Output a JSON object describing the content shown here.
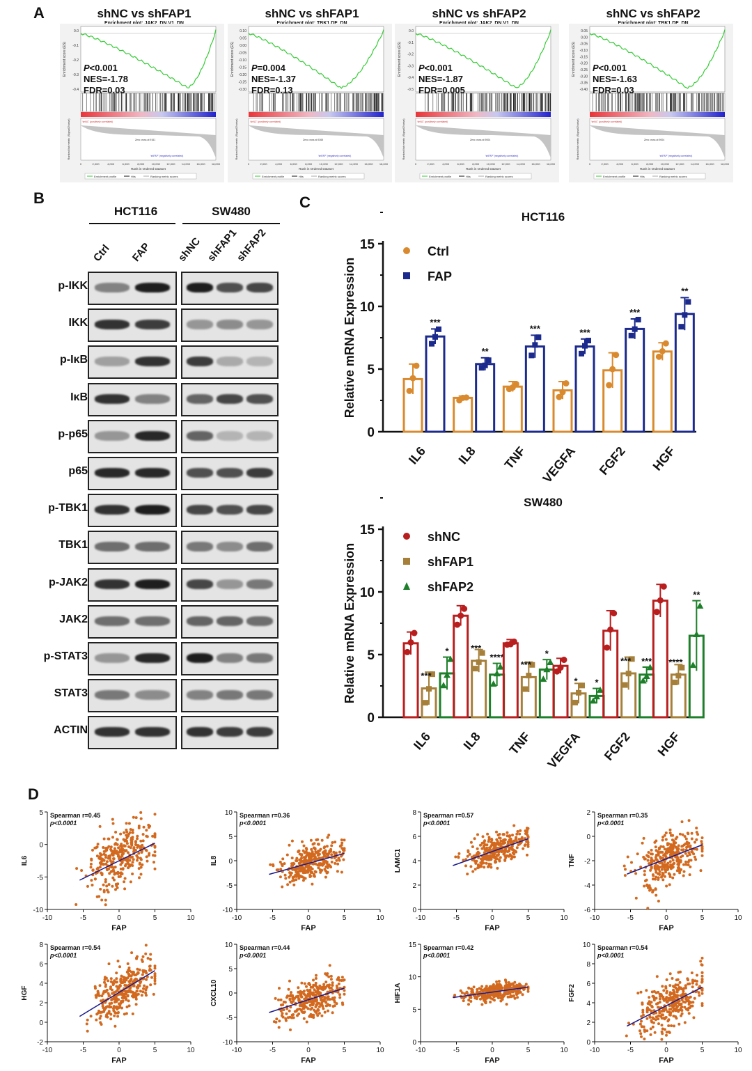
{
  "panels": {
    "a": "A",
    "b": "B",
    "c": "C",
    "d": "D"
  },
  "gsea": [
    {
      "title": "shNC vs shFAP1",
      "subtitle": "Enrichment plot: JAK2_DN.V1_DN",
      "p": "P<0.001",
      "nes": "NES=-1.78",
      "fdr": "FDR=0.03",
      "min_es": -0.44,
      "min_rank": 0.79,
      "yticks": [
        "0.0",
        "-0.1",
        "-0.2",
        "-0.3",
        "-0.4"
      ],
      "zero_cross": "Zero cross at 9161"
    },
    {
      "title": "shNC vs shFAP1",
      "subtitle": "Enrichment plot: TBK1.DF_DN",
      "p": "P=0.004",
      "nes": "NES=-1.37",
      "fdr": "FDR=0.13",
      "min_es": -0.3,
      "min_rank": 0.68,
      "yticks": [
        "0.10",
        "0.05",
        "0.00",
        "-0.05",
        "-0.10",
        "-0.15",
        "-0.20",
        "-0.25",
        "-0.30"
      ],
      "zero_cross": "Zero cross at 9265"
    },
    {
      "title": "shNC vs shFAP2",
      "subtitle": "Enrichment plot: JAK2_DN.V1_DN",
      "p": "P<0.001",
      "nes": "NES=-1.87",
      "fdr": "FDR=0.005",
      "min_es": -0.46,
      "min_rank": 0.74,
      "yticks": [
        "0.0",
        "-0.1",
        "-0.2",
        "-0.3",
        "-0.4",
        "-0.5"
      ],
      "zero_cross": "Zero cross at 9004"
    },
    {
      "title": "shNC vs shFAP2",
      "subtitle": "Enrichment plot: TBK1.DF_DN",
      "p": "P<0.001",
      "nes": "NES=-1.63",
      "fdr": "FDR=0.03",
      "min_es": -0.36,
      "min_rank": 0.72,
      "yticks": [
        "0.05",
        "0.00",
        "-0.05",
        "-0.10",
        "-0.15",
        "-0.20",
        "-0.25",
        "-0.30",
        "-0.35",
        "-0.40"
      ],
      "zero_cross": "Zero cross at 9004"
    }
  ],
  "gsea_common": {
    "ylabel_es": "Enrichment score (ES)",
    "ylabel_metric": "Ranked list metric (Signal2Noise)",
    "xlabel": "Rank in Ordered Dataset",
    "xticks": [
      "0",
      "2,000",
      "4,000",
      "6,000",
      "8,000",
      "10,000",
      "12,000",
      "14,000",
      "16,000",
      "18,000"
    ],
    "pos_label": "'shNC' (positively correlated)",
    "neg_label": "'shFAP' (negatively correlated)",
    "legend": [
      "Enrichment profile",
      "Hits",
      "Ranking metric scores"
    ]
  },
  "western_blot": {
    "groups": [
      {
        "name": "HCT116",
        "lanes": [
          "Ctrl",
          "FAP"
        ]
      },
      {
        "name": "SW480",
        "lanes": [
          "shNC",
          "shFAP1",
          "shFAP2"
        ]
      }
    ],
    "proteins": [
      {
        "name": "p-IKK",
        "hct": [
          0.45,
          0.95
        ],
        "sw": [
          0.95,
          0.7,
          0.75
        ]
      },
      {
        "name": "IKK",
        "hct": [
          0.85,
          0.8
        ],
        "sw": [
          0.35,
          0.4,
          0.35
        ]
      },
      {
        "name": "p-IκB",
        "hct": [
          0.3,
          0.85
        ],
        "sw": [
          0.8,
          0.25,
          0.2
        ]
      },
      {
        "name": "IκB",
        "hct": [
          0.85,
          0.45
        ],
        "sw": [
          0.6,
          0.75,
          0.7
        ]
      },
      {
        "name": "p-p65",
        "hct": [
          0.35,
          0.9
        ],
        "sw": [
          0.6,
          0.2,
          0.2
        ]
      },
      {
        "name": "p65",
        "hct": [
          0.9,
          0.9
        ],
        "sw": [
          0.7,
          0.7,
          0.8
        ]
      },
      {
        "name": "p-TBK1",
        "hct": [
          0.85,
          0.95
        ],
        "sw": [
          0.75,
          0.7,
          0.75
        ]
      },
      {
        "name": "TBK1",
        "hct": [
          0.55,
          0.55
        ],
        "sw": [
          0.5,
          0.4,
          0.55
        ]
      },
      {
        "name": "p-JAK2",
        "hct": [
          0.85,
          0.95
        ],
        "sw": [
          0.75,
          0.35,
          0.5
        ]
      },
      {
        "name": "JAK2",
        "hct": [
          0.55,
          0.55
        ],
        "sw": [
          0.6,
          0.6,
          0.55
        ]
      },
      {
        "name": "p-STAT3",
        "hct": [
          0.35,
          0.9
        ],
        "sw": [
          0.95,
          0.45,
          0.5
        ]
      },
      {
        "name": "STAT3",
        "hct": [
          0.5,
          0.4
        ],
        "sw": [
          0.45,
          0.5,
          0.5
        ]
      },
      {
        "name": "ACTIN",
        "hct": [
          0.85,
          0.85
        ],
        "sw": [
          0.85,
          0.8,
          0.8
        ]
      }
    ]
  },
  "chart_data": [
    {
      "type": "bar",
      "title": "HCT116",
      "ylabel": "Relative mRNA Expression",
      "ylim": [
        0,
        15
      ],
      "yticks": [
        "0",
        "5",
        "10",
        "15"
      ],
      "categories": [
        "IL6",
        "IL8",
        "TNF",
        "VEGFA",
        "FGF2",
        "HGF"
      ],
      "series": [
        {
          "name": "Ctrl",
          "color": "#d98a2e",
          "values": [
            4.2,
            2.7,
            3.6,
            3.3,
            4.9,
            6.4
          ],
          "err": [
            1.2,
            0.15,
            0.4,
            0.7,
            1.4,
            0.7
          ]
        },
        {
          "name": "FAP",
          "color": "#1b2a8c",
          "values": [
            7.6,
            5.4,
            6.8,
            6.8,
            8.2,
            9.4
          ],
          "err": [
            0.6,
            0.5,
            0.9,
            0.6,
            0.8,
            1.3
          ]
        }
      ],
      "significance": [
        "***",
        "**",
        "***",
        "***",
        "***",
        "**"
      ]
    },
    {
      "type": "bar",
      "title": "SW480",
      "ylabel": "Relative mRNA Expression",
      "ylim": [
        0,
        15
      ],
      "yticks": [
        "0",
        "5",
        "10",
        "15"
      ],
      "categories": [
        "IL6",
        "IL8",
        "TNF",
        "VEGFA",
        "FGF2",
        "HGF"
      ],
      "series": [
        {
          "name": "shNC",
          "color": "#b81e1e",
          "values": [
            5.9,
            8.1,
            5.9,
            4.1,
            6.9,
            9.3
          ],
          "err": [
            0.9,
            0.8,
            0.3,
            0.6,
            1.6,
            1.3
          ]
        },
        {
          "name": "shFAP1",
          "color": "#a6803a",
          "values": [
            2.3,
            4.5,
            3.2,
            1.9,
            3.5,
            3.4
          ],
          "err": [
            1.3,
            0.9,
            1.2,
            0.8,
            1.3,
            0.8
          ]
        },
        {
          "name": "shFAP2",
          "color": "#1e7f2a",
          "values": [
            3.5,
            3.4,
            3.8,
            1.7,
            3.4,
            6.5
          ],
          "err": [
            1.3,
            0.9,
            0.8,
            0.6,
            0.6,
            2.8
          ]
        }
      ],
      "significance_fap1": [
        "***",
        "***",
        "***",
        "*",
        "***",
        "****"
      ],
      "significance_fap2": [
        "*",
        "****",
        "*",
        "*",
        "***",
        "**"
      ]
    },
    {
      "type": "scatter",
      "ylabel": "IL6",
      "xlabel": "FAP",
      "stat": "Spearman r=0.45",
      "p": "p<0.0001",
      "xlim": [
        -10,
        10
      ],
      "ylim": [
        -10,
        5
      ],
      "xticks": [
        "-10",
        "-5",
        "0",
        "5",
        "10"
      ],
      "yticks": [
        "-10",
        "-5",
        "0",
        "5"
      ],
      "fit": [
        [
          -5.5,
          -5.5
        ],
        [
          5,
          0.2
        ]
      ],
      "cloud": {
        "mx": 0.3,
        "sx": 2.4,
        "slope": 0.55,
        "icpt": -2.2,
        "noise": 2.2
      }
    },
    {
      "type": "scatter",
      "ylabel": "IL8",
      "xlabel": "FAP",
      "stat": "Spearman r=0.36",
      "p": "p<0.0001",
      "xlim": [
        -10,
        10
      ],
      "ylim": [
        -10,
        10
      ],
      "xticks": [
        "-10",
        "-5",
        "0",
        "5",
        "10"
      ],
      "yticks": [
        "-10",
        "-5",
        "0",
        "5",
        "10"
      ],
      "fit": [
        [
          -5.5,
          -2.8
        ],
        [
          5,
          1.5
        ]
      ],
      "cloud": {
        "mx": 0.3,
        "sx": 2.2,
        "slope": 0.4,
        "icpt": -0.6,
        "noise": 1.8
      }
    },
    {
      "type": "scatter",
      "ylabel": "LAMC1",
      "xlabel": "FAP",
      "stat": "Spearman r=0.57",
      "p": "p<0.0001",
      "xlim": [
        -10,
        10
      ],
      "ylim": [
        0,
        8
      ],
      "xticks": [
        "-10",
        "-5",
        "0",
        "5",
        "10"
      ],
      "yticks": [
        "0",
        "2",
        "4",
        "6",
        "8"
      ],
      "fit": [
        [
          -5.5,
          3.6
        ],
        [
          5,
          5.8
        ]
      ],
      "cloud": {
        "mx": 0.5,
        "sx": 2.2,
        "slope": 0.2,
        "icpt": 4.7,
        "noise": 0.6
      }
    },
    {
      "type": "scatter",
      "ylabel": "TNF",
      "xlabel": "FAP",
      "stat": "Spearman r=0.35",
      "p": "p<0.0001",
      "xlim": [
        -10,
        10
      ],
      "ylim": [
        -6,
        2
      ],
      "xticks": [
        "-10",
        "-5",
        "0",
        "5",
        "10"
      ],
      "yticks": [
        "-6",
        "-4",
        "-2",
        "0",
        "2"
      ],
      "fit": [
        [
          -5.5,
          -3.1
        ],
        [
          5,
          -0.7
        ]
      ],
      "cloud": {
        "mx": 0.5,
        "sx": 2.3,
        "slope": 0.23,
        "icpt": -1.9,
        "noise": 1.0
      }
    },
    {
      "type": "scatter",
      "ylabel": "HGF",
      "xlabel": "FAP",
      "stat": "Spearman r=0.54",
      "p": "p<0.0001",
      "xlim": [
        -10,
        10
      ],
      "ylim": [
        -2,
        8
      ],
      "xticks": [
        "-10",
        "-5",
        "0",
        "5",
        "10"
      ],
      "yticks": [
        "-2",
        "0",
        "2",
        "4",
        "6",
        "8"
      ],
      "fit": [
        [
          -5.5,
          0.6
        ],
        [
          5,
          5.3
        ]
      ],
      "cloud": {
        "mx": 0.6,
        "sx": 2.2,
        "slope": 0.45,
        "icpt": 3.0,
        "noise": 1.2
      }
    },
    {
      "type": "scatter",
      "ylabel": "CXCL10",
      "xlabel": "FAP",
      "stat": "Spearman r=0.44",
      "p": "p<0.0001",
      "xlim": [
        -10,
        10
      ],
      "ylim": [
        -10,
        10
      ],
      "xticks": [
        "-10",
        "-5",
        "0",
        "5",
        "10"
      ],
      "yticks": [
        "-10",
        "-5",
        "0",
        "5",
        "10"
      ],
      "fit": [
        [
          -5.5,
          -4.0
        ],
        [
          5,
          1.0
        ]
      ],
      "cloud": {
        "mx": 0.5,
        "sx": 2.2,
        "slope": 0.48,
        "icpt": -1.4,
        "noise": 1.8
      }
    },
    {
      "type": "scatter",
      "ylabel": "HIF1A",
      "xlabel": "FAP",
      "stat": "Spearman r=0.42",
      "p": "p<0.0001",
      "xlim": [
        -10,
        10
      ],
      "ylim": [
        0,
        15
      ],
      "xticks": [
        "-10",
        "-5",
        "0",
        "5",
        "10"
      ],
      "yticks": [
        "0",
        "5",
        "10",
        "15"
      ],
      "fit": [
        [
          -5.5,
          6.8
        ],
        [
          5,
          8.4
        ]
      ],
      "cloud": {
        "mx": 0.5,
        "sx": 2.2,
        "slope": 0.15,
        "icpt": 7.6,
        "noise": 0.6
      }
    },
    {
      "type": "scatter",
      "ylabel": "FGF2",
      "xlabel": "FAP",
      "stat": "Spearman r=0.54",
      "p": "p<0.0001",
      "xlim": [
        -10,
        10
      ],
      "ylim": [
        0,
        10
      ],
      "xticks": [
        "-10",
        "-5",
        "0",
        "5",
        "10"
      ],
      "yticks": [
        "0",
        "2",
        "4",
        "6",
        "8",
        "10"
      ],
      "fit": [
        [
          -5.5,
          1.6
        ],
        [
          5,
          5.6
        ]
      ],
      "cloud": {
        "mx": 0.6,
        "sx": 2.2,
        "slope": 0.38,
        "icpt": 3.7,
        "noise": 1.3
      }
    }
  ]
}
